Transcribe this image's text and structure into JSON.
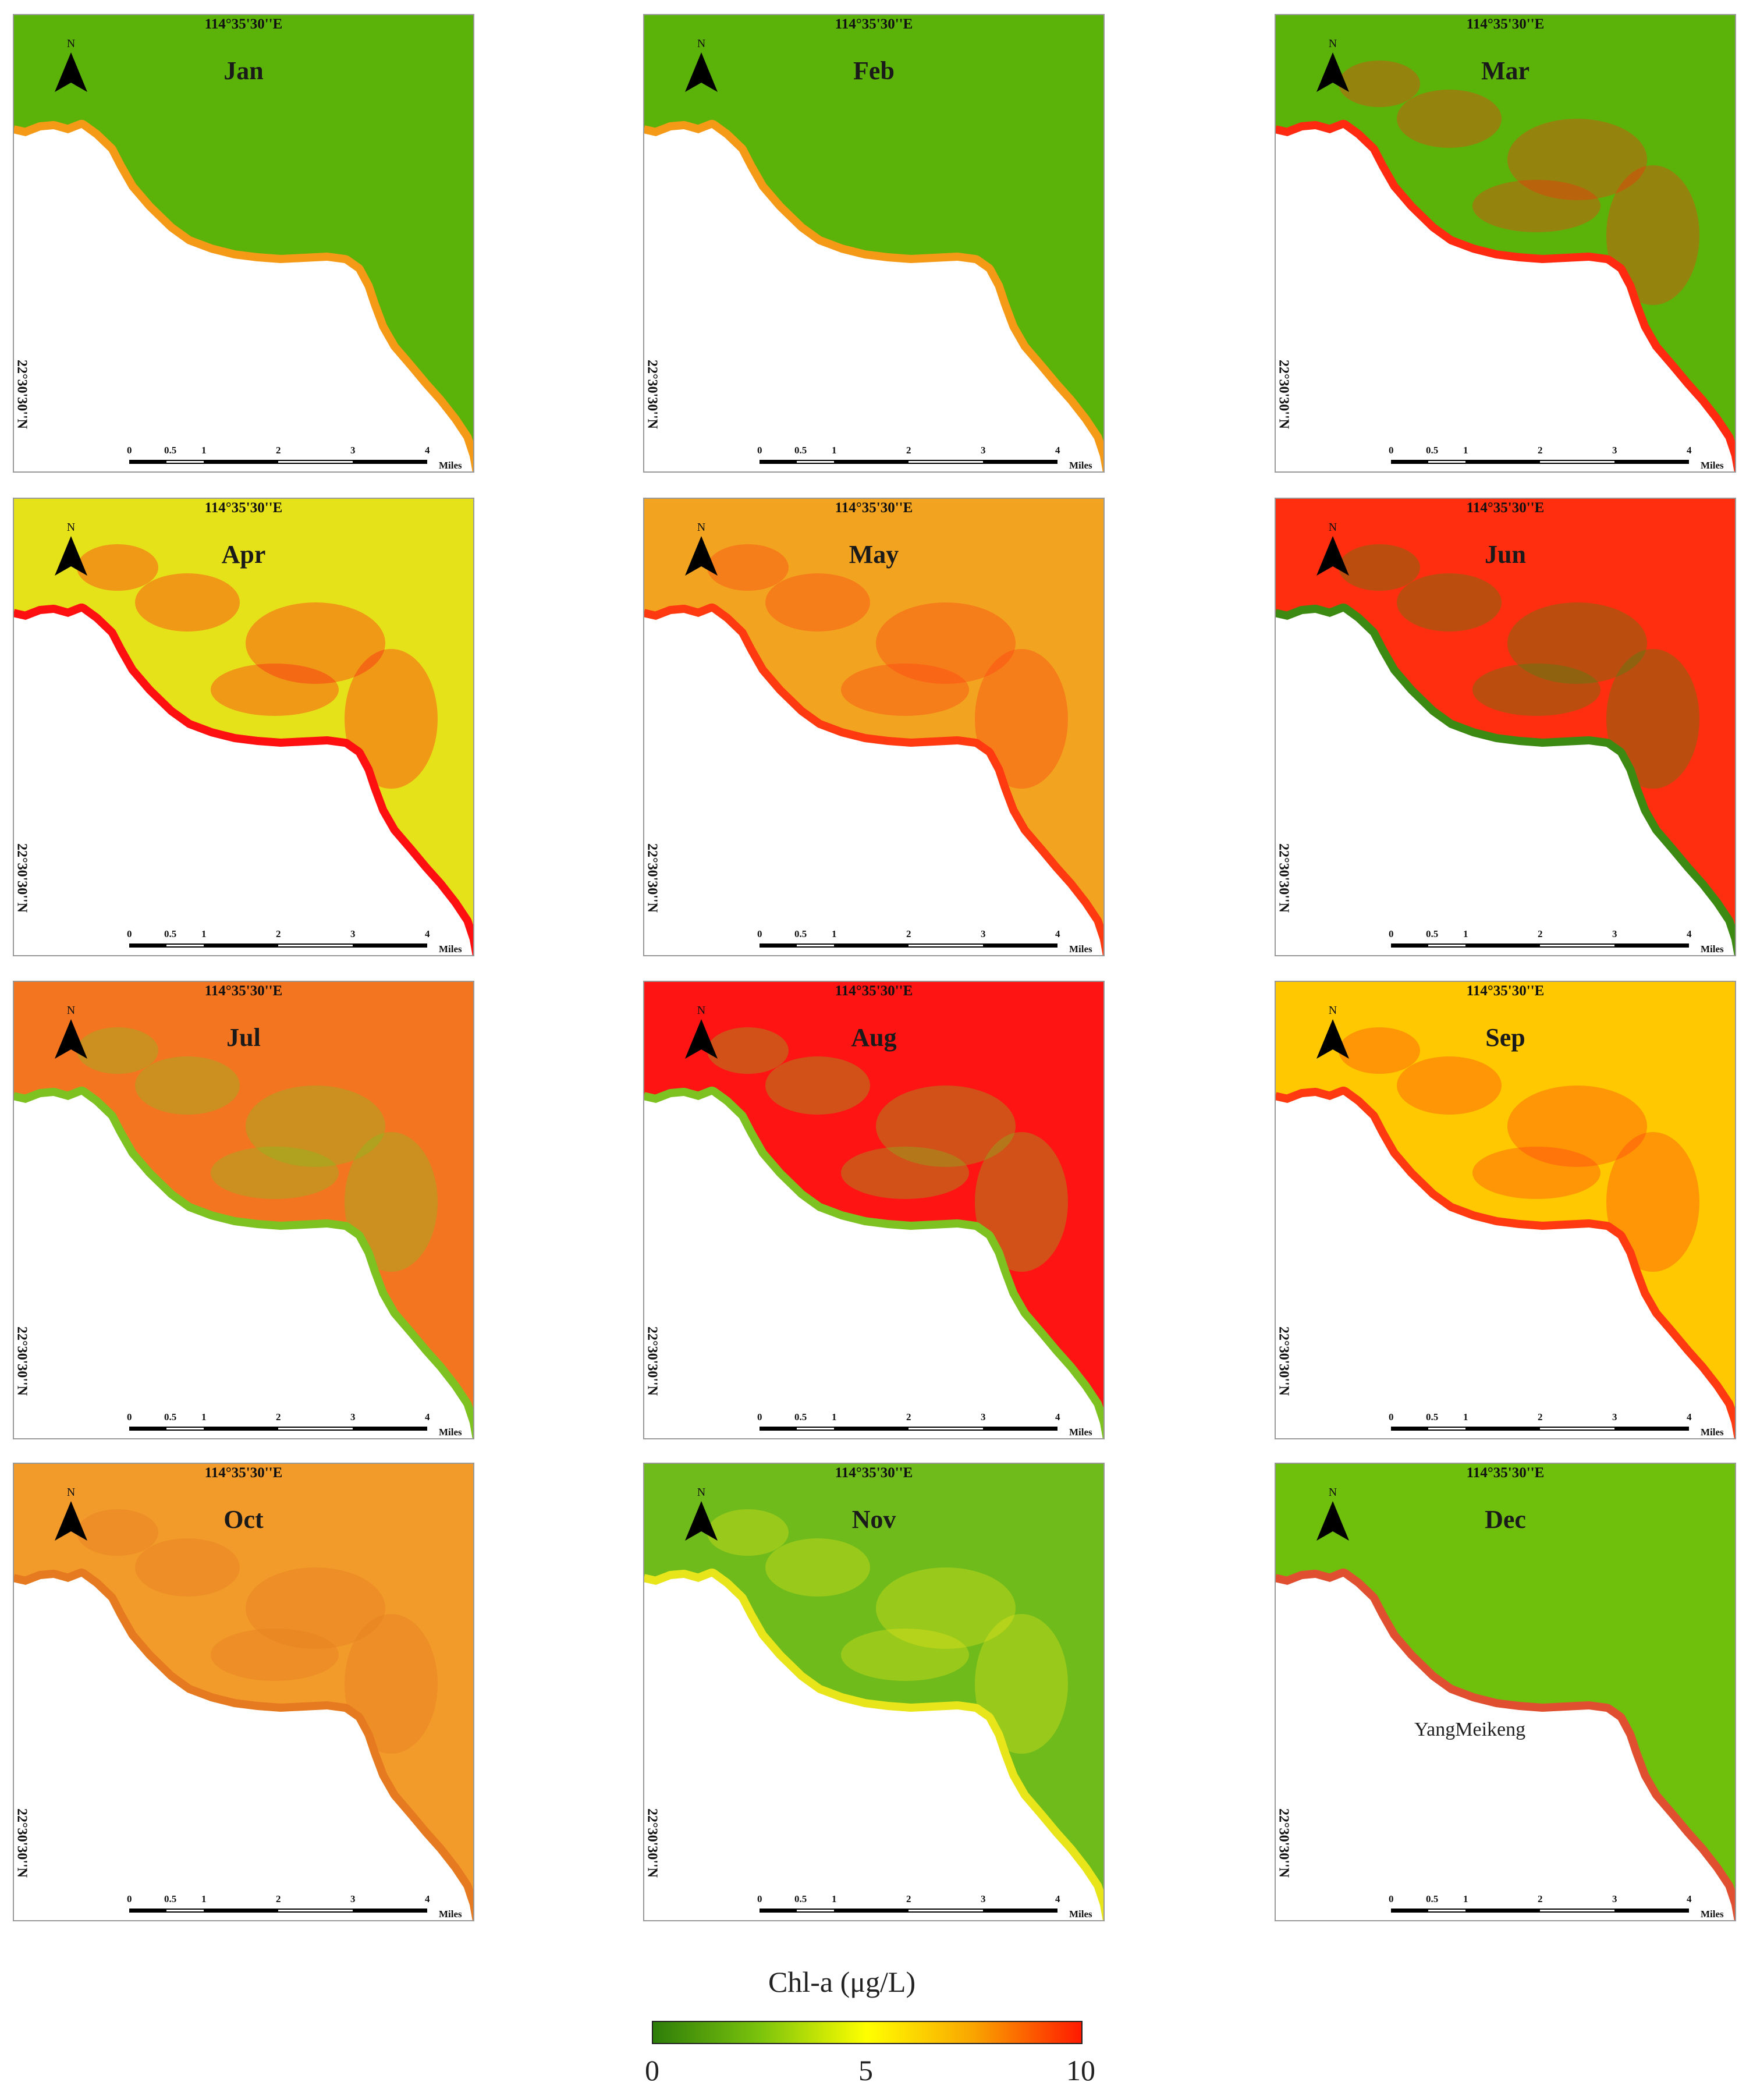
{
  "panels": [
    {
      "month": "Jan",
      "lon": "114°35'30''E",
      "lat": "22°30'30''N",
      "colors": {
        "base": "#5bb30a",
        "coast": "#f59a17"
      }
    },
    {
      "month": "Feb",
      "lon": "114°35'30''E",
      "lat": "22°30'30''N",
      "colors": {
        "base": "#5bb30a",
        "coast": "#f59a17"
      }
    },
    {
      "month": "Mar",
      "lon": "114°35'30''E",
      "lat": "22°30'30''N",
      "colors": {
        "base": "#5bb30a",
        "coast": "#ff2a10"
      }
    },
    {
      "month": "Apr",
      "lon": "114°35'30''E",
      "lat": "22°30'30''N",
      "colors": {
        "base": "#e6e21a",
        "coast": "#ff1010"
      }
    },
    {
      "month": "May",
      "lon": "114°35'30''E",
      "lat": "22°30'30''N",
      "colors": {
        "base": "#f2a420",
        "coast": "#ff3a10"
      }
    },
    {
      "month": "Jun",
      "lon": "114°35'30''E",
      "lat": "22°30'30''N",
      "colors": {
        "base": "#ff2e0f",
        "coast": "#3d8a12"
      }
    },
    {
      "month": "Jul",
      "lon": "114°35'30''E",
      "lat": "22°30'30''N",
      "colors": {
        "base": "#f47520",
        "coast": "#7dc220"
      }
    },
    {
      "month": "Aug",
      "lon": "114°35'30''E",
      "lat": "22°30'30''N",
      "colors": {
        "base": "#ff1414",
        "coast": "#7dc220"
      }
    },
    {
      "month": "Sep",
      "lon": "114°35'30''E",
      "lat": "22°30'30''N",
      "colors": {
        "base": "#ffc800",
        "coast": "#ff3a10"
      }
    },
    {
      "month": "Oct",
      "lon": "114°35'30''E",
      "lat": "22°30'30''N",
      "colors": {
        "base": "#f29a2a",
        "coast": "#e57a20"
      }
    },
    {
      "month": "Nov",
      "lon": "114°35'30''E",
      "lat": "22°30'30''N",
      "colors": {
        "base": "#6fbb1c",
        "coast": "#e8e61a"
      }
    },
    {
      "month": "Dec",
      "lon": "114°35'30''E",
      "lat": "22°30'30''N",
      "colors": {
        "base": "#6fc00c",
        "coast": "#e05030"
      }
    }
  ],
  "scalebar": {
    "ticks": [
      "0",
      "0.5",
      "1",
      "2",
      "3",
      "4"
    ],
    "unit": "Miles"
  },
  "north_arrow": {
    "label": "N"
  },
  "place_label": "YangMeikeng",
  "legend": {
    "title": "Chl-a (μg/L)",
    "min": "0",
    "mid": "5",
    "max": "10",
    "gradient": [
      "#2e7d0a",
      "#7bc30c",
      "#ffff00",
      "#f9a400",
      "#ff1a00"
    ]
  }
}
